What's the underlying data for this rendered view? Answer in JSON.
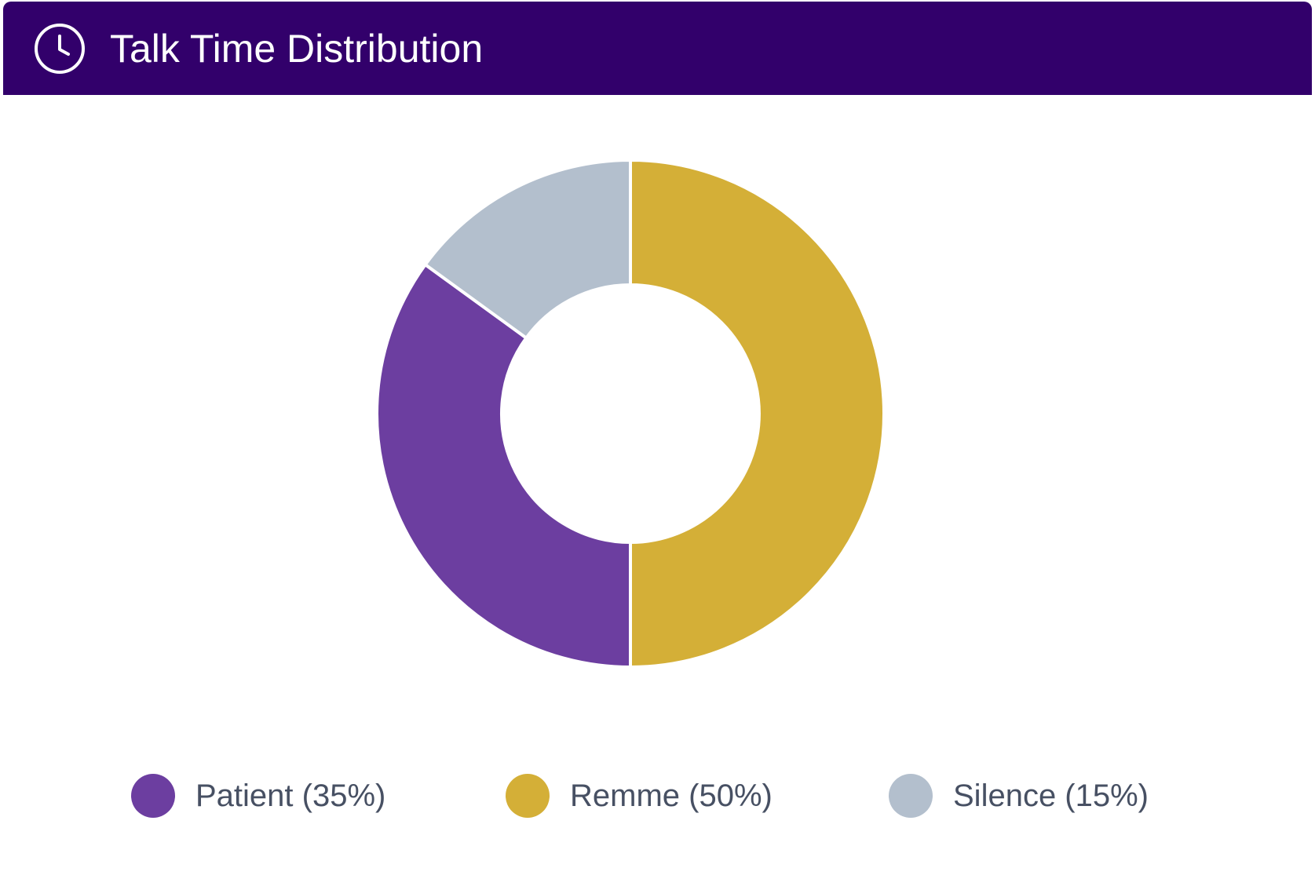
{
  "header": {
    "title": "Talk Time Distribution",
    "icon": "clock-icon",
    "background": "#32006b"
  },
  "chart_data": {
    "type": "pie",
    "donut": true,
    "title": "Talk Time Distribution",
    "legend_position": "bottom",
    "series": [
      {
        "name": "Patient",
        "value": 35,
        "color": "#6c3ea0"
      },
      {
        "name": "Remme",
        "value": 50,
        "color": "#d4af37"
      },
      {
        "name": "Silence",
        "value": 15,
        "color": "#b3bfcd"
      }
    ],
    "legend": [
      {
        "label": "Patient (35%)",
        "color": "#6c3ea0"
      },
      {
        "label": "Remme (50%)",
        "color": "#d4af37"
      },
      {
        "label": "Silence (15%)",
        "color": "#b3bfcd"
      }
    ]
  }
}
